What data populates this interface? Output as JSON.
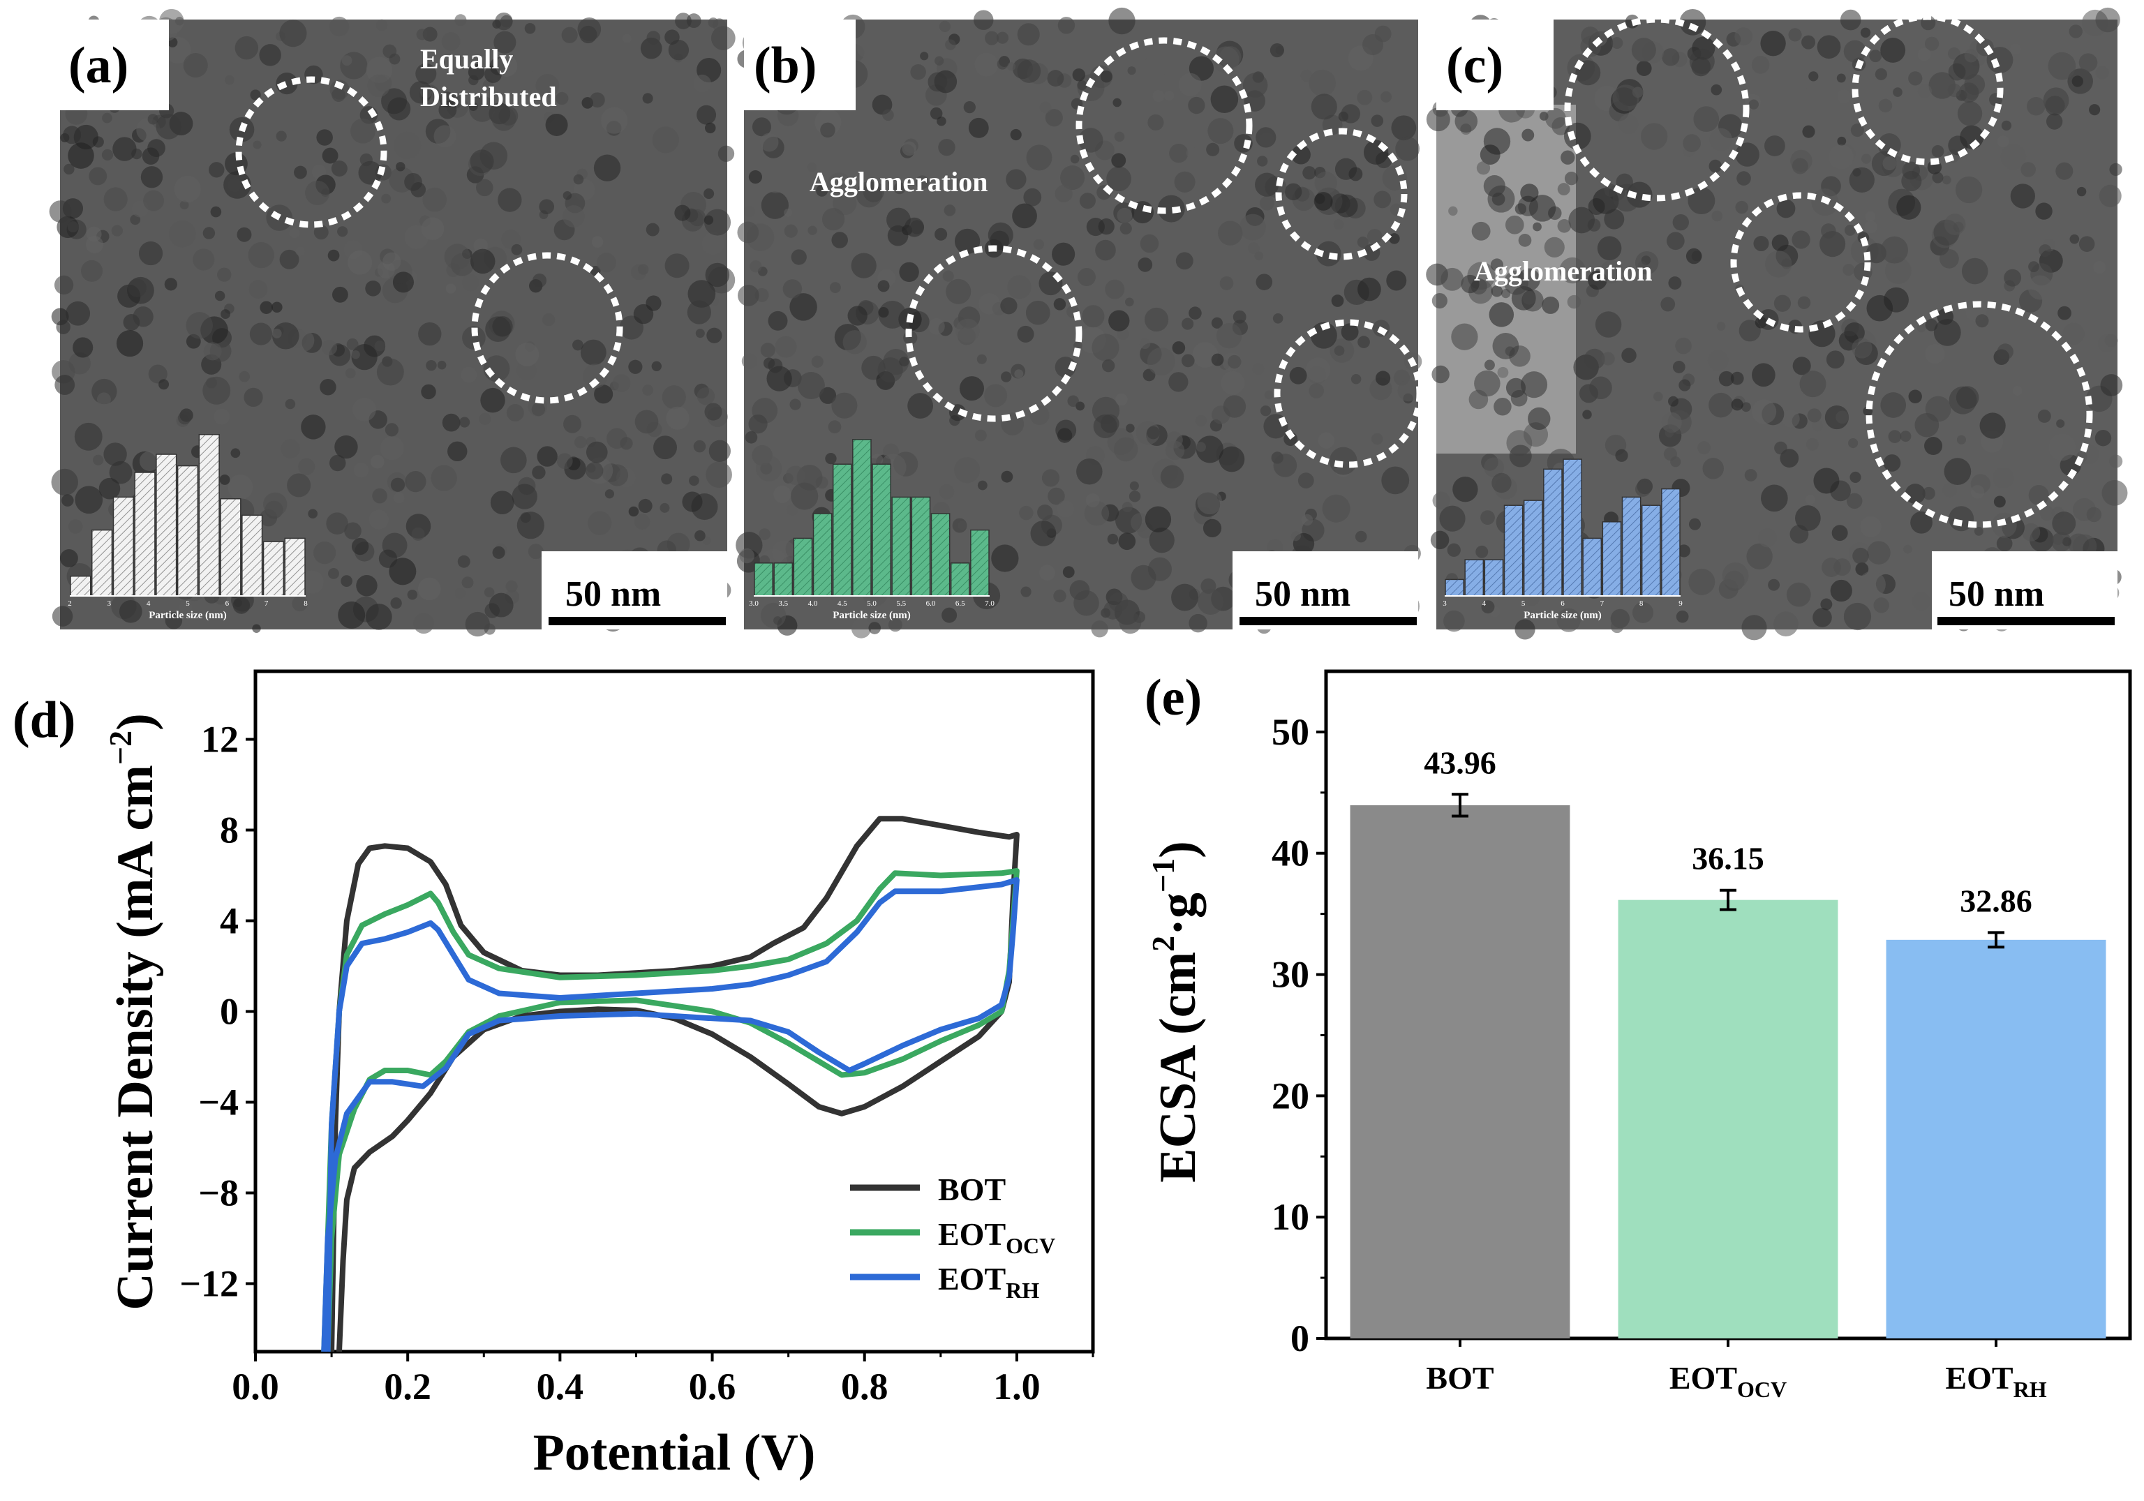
{
  "panels": {
    "a": {
      "label": "(a)",
      "annotations": [
        "Equally",
        "Distributed"
      ],
      "scale_bar": "50 nm",
      "hist_color": "#f2f2f2",
      "hist_values": [
        0.12,
        0.4,
        0.6,
        0.75,
        0.86,
        0.79,
        0.98,
        0.59,
        0.49,
        0.33,
        0.35
      ],
      "hist_ticks": [
        "2",
        "3",
        "4",
        "5",
        "6",
        "7",
        "8"
      ],
      "hist_xlabel": "Particle size (nm)"
    },
    "b": {
      "label": "(b)",
      "annotations": [
        "Agglomeration"
      ],
      "scale_bar": "50 nm",
      "hist_color": "#5cb98b",
      "hist_values": [
        0.2,
        0.2,
        0.35,
        0.5,
        0.8,
        0.95,
        0.8,
        0.6,
        0.6,
        0.5,
        0.2,
        0.4
      ],
      "hist_ticks": [
        "3.0",
        "3.5",
        "4.0",
        "4.5",
        "5.0",
        "5.5",
        "6.0",
        "6.5",
        "7.0"
      ],
      "hist_xlabel": "Particle size (nm)"
    },
    "c": {
      "label": "(c)",
      "annotations": [
        "Agglomeration"
      ],
      "scale_bar": "50 nm",
      "hist_color": "#86aee6",
      "hist_values": [
        0.1,
        0.22,
        0.22,
        0.55,
        0.58,
        0.77,
        0.83,
        0.35,
        0.45,
        0.6,
        0.55,
        0.65
      ],
      "hist_ticks": [
        "3",
        "4",
        "5",
        "6",
        "7",
        "8",
        "9"
      ],
      "hist_xlabel": "Particle size (nm)"
    }
  },
  "chart_data": [
    {
      "panel": "(d)",
      "type": "line",
      "xlabel": "Potential (V)",
      "ylabel": "Current Density (mA cm−2)",
      "ylabel_main": "Current Density (mA cm",
      "ylabel_sup": "−2",
      "ylabel_close": ")",
      "xlim": [
        0.0,
        1.1
      ],
      "ylim": [
        -15,
        15
      ],
      "xticks": [
        0.0,
        0.2,
        0.4,
        0.6,
        0.8,
        1.0
      ],
      "xtick_labels": [
        "0.0",
        "0.2",
        "0.4",
        "0.6",
        "0.8",
        "1.0"
      ],
      "yticks": [
        -12,
        -8,
        -4,
        0,
        4,
        8,
        12
      ],
      "ytick_labels": [
        "−12",
        "−8",
        "−4",
        "0",
        "4",
        "8",
        "12"
      ],
      "legend_position": "bottom-right",
      "series": [
        {
          "name": "BOT",
          "name_main": "BOT",
          "name_sub": "",
          "color": "#333333",
          "points": [
            [
              0.11,
              -15
            ],
            [
              0.115,
              -11
            ],
            [
              0.12,
              -8.3
            ],
            [
              0.13,
              -6.9
            ],
            [
              0.15,
              -6.2
            ],
            [
              0.18,
              -5.5
            ],
            [
              0.2,
              -4.8
            ],
            [
              0.23,
              -3.6
            ],
            [
              0.26,
              -2
            ],
            [
              0.3,
              -0.8
            ],
            [
              0.35,
              -0.2
            ],
            [
              0.4,
              0
            ],
            [
              0.45,
              0.1
            ],
            [
              0.5,
              0.05
            ],
            [
              0.55,
              -0.3
            ],
            [
              0.6,
              -1
            ],
            [
              0.65,
              -2
            ],
            [
              0.7,
              -3.2
            ],
            [
              0.74,
              -4.2
            ],
            [
              0.77,
              -4.5
            ],
            [
              0.8,
              -4.2
            ],
            [
              0.85,
              -3.3
            ],
            [
              0.9,
              -2.2
            ],
            [
              0.95,
              -1.1
            ],
            [
              0.98,
              0
            ],
            [
              0.99,
              1.3
            ],
            [
              0.995,
              5
            ],
            [
              1.0,
              7.8
            ],
            [
              0.99,
              7.7
            ],
            [
              0.95,
              7.9
            ],
            [
              0.9,
              8.2
            ],
            [
              0.85,
              8.5
            ],
            [
              0.82,
              8.5
            ],
            [
              0.79,
              7.3
            ],
            [
              0.75,
              5
            ],
            [
              0.72,
              3.7
            ],
            [
              0.68,
              3
            ],
            [
              0.65,
              2.4
            ],
            [
              0.6,
              2
            ],
            [
              0.55,
              1.8
            ],
            [
              0.5,
              1.7
            ],
            [
              0.45,
              1.6
            ],
            [
              0.4,
              1.6
            ],
            [
              0.35,
              1.8
            ],
            [
              0.3,
              2.6
            ],
            [
              0.27,
              3.8
            ],
            [
              0.25,
              5.6
            ],
            [
              0.23,
              6.6
            ],
            [
              0.2,
              7.2
            ],
            [
              0.17,
              7.3
            ],
            [
              0.15,
              7.2
            ],
            [
              0.135,
              6.5
            ],
            [
              0.12,
              4
            ],
            [
              0.11,
              0
            ],
            [
              0.105,
              -5
            ],
            [
              0.1,
              -15
            ]
          ]
        },
        {
          "name": "EOTOCV",
          "name_main": "EOT",
          "name_sub": "OCV",
          "color": "#3aa860",
          "points": [
            [
              0.095,
              -15
            ],
            [
              0.1,
              -10
            ],
            [
              0.11,
              -6.3
            ],
            [
              0.13,
              -4.3
            ],
            [
              0.15,
              -3
            ],
            [
              0.17,
              -2.6
            ],
            [
              0.2,
              -2.6
            ],
            [
              0.23,
              -2.8
            ],
            [
              0.25,
              -2.2
            ],
            [
              0.28,
              -0.9
            ],
            [
              0.32,
              -0.2
            ],
            [
              0.4,
              0.4
            ],
            [
              0.5,
              0.5
            ],
            [
              0.6,
              0
            ],
            [
              0.65,
              -0.5
            ],
            [
              0.7,
              -1.4
            ],
            [
              0.74,
              -2.2
            ],
            [
              0.77,
              -2.8
            ],
            [
              0.8,
              -2.7
            ],
            [
              0.85,
              -2.1
            ],
            [
              0.9,
              -1.3
            ],
            [
              0.95,
              -0.6
            ],
            [
              0.98,
              0
            ],
            [
              0.99,
              1.8
            ],
            [
              0.995,
              4
            ],
            [
              1.0,
              6.2
            ],
            [
              0.98,
              6.1
            ],
            [
              0.9,
              6
            ],
            [
              0.84,
              6.1
            ],
            [
              0.82,
              5.4
            ],
            [
              0.79,
              4
            ],
            [
              0.75,
              3
            ],
            [
              0.7,
              2.3
            ],
            [
              0.65,
              2
            ],
            [
              0.6,
              1.8
            ],
            [
              0.5,
              1.6
            ],
            [
              0.4,
              1.5
            ],
            [
              0.32,
              1.9
            ],
            [
              0.28,
              2.5
            ],
            [
              0.26,
              3.5
            ],
            [
              0.24,
              4.8
            ],
            [
              0.23,
              5.2
            ],
            [
              0.2,
              4.7
            ],
            [
              0.17,
              4.3
            ],
            [
              0.14,
              3.8
            ],
            [
              0.12,
              2.5
            ],
            [
              0.11,
              0
            ],
            [
              0.1,
              -5
            ],
            [
              0.09,
              -15
            ]
          ]
        },
        {
          "name": "EOTRH",
          "name_main": "EOT",
          "name_sub": "RH",
          "color": "#2d6ad6",
          "points": [
            [
              0.09,
              -15
            ],
            [
              0.095,
              -10
            ],
            [
              0.105,
              -6.5
            ],
            [
              0.12,
              -4.5
            ],
            [
              0.15,
              -3.1
            ],
            [
              0.18,
              -3.1
            ],
            [
              0.22,
              -3.3
            ],
            [
              0.25,
              -2.5
            ],
            [
              0.28,
              -1
            ],
            [
              0.32,
              -0.4
            ],
            [
              0.4,
              -0.2
            ],
            [
              0.5,
              -0.1
            ],
            [
              0.6,
              -0.3
            ],
            [
              0.65,
              -0.4
            ],
            [
              0.7,
              -0.9
            ],
            [
              0.74,
              -1.8
            ],
            [
              0.78,
              -2.6
            ],
            [
              0.8,
              -2.3
            ],
            [
              0.85,
              -1.5
            ],
            [
              0.9,
              -0.8
            ],
            [
              0.95,
              -0.3
            ],
            [
              0.98,
              0.3
            ],
            [
              0.99,
              1.5
            ],
            [
              0.995,
              3.5
            ],
            [
              1.0,
              5.8
            ],
            [
              0.98,
              5.6
            ],
            [
              0.9,
              5.3
            ],
            [
              0.84,
              5.3
            ],
            [
              0.82,
              4.8
            ],
            [
              0.79,
              3.5
            ],
            [
              0.75,
              2.2
            ],
            [
              0.7,
              1.6
            ],
            [
              0.65,
              1.2
            ],
            [
              0.6,
              1
            ],
            [
              0.5,
              0.8
            ],
            [
              0.4,
              0.6
            ],
            [
              0.32,
              0.8
            ],
            [
              0.28,
              1.4
            ],
            [
              0.26,
              2.5
            ],
            [
              0.24,
              3.6
            ],
            [
              0.23,
              3.9
            ],
            [
              0.2,
              3.5
            ],
            [
              0.17,
              3.2
            ],
            [
              0.14,
              3.0
            ],
            [
              0.12,
              2
            ],
            [
              0.11,
              0
            ],
            [
              0.1,
              -5
            ],
            [
              0.095,
              -15
            ]
          ]
        }
      ]
    },
    {
      "panel": "(e)",
      "type": "bar",
      "categories": [
        "BOT",
        "EOTOCV",
        "EOTRH"
      ],
      "category_main": [
        "BOT",
        "EOT",
        "EOT"
      ],
      "category_sub": [
        "",
        "OCV",
        "RH"
      ],
      "values": [
        43.96,
        36.15,
        32.86
      ],
      "value_labels": [
        "43.96",
        "36.15",
        "32.86"
      ],
      "errors": [
        0.9,
        0.8,
        0.6
      ],
      "colors": [
        "#8a8a8a",
        "#9fdfbe",
        "#88bdf2"
      ],
      "ylabel": "ECSA (cm2·g−1)",
      "ylabel_main": "ECSA (cm",
      "ylabel_sup1": "2",
      "ylabel_mid": "·g",
      "ylabel_sup2": "−1",
      "ylabel_close": ")",
      "ylim": [
        0,
        55
      ],
      "yticks": [
        0,
        10,
        20,
        30,
        40,
        50
      ],
      "ytick_labels": [
        "0",
        "10",
        "20",
        "30",
        "40",
        "50"
      ]
    }
  ]
}
